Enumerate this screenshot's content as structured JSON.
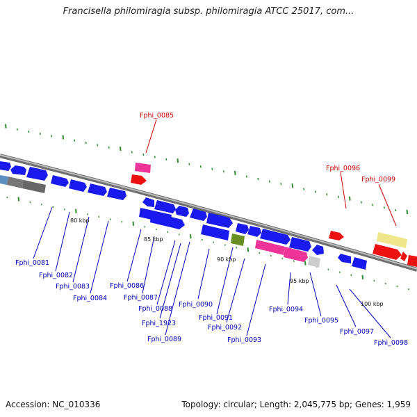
{
  "title": "Francisella philomiragia subsp. philomiragia ATCC 25017, com...",
  "footer": {
    "accession": "Accession: NC_010336",
    "summary": "Topology: circular; Length: 2,045,775 bp; Genes: 1,959"
  },
  "colors": {
    "backbone": "#8a8a8a",
    "tick": "#2e8b2e",
    "label_blue": "#0000bb",
    "label_red": "#cc0000",
    "cds_blue": "#1a1aee",
    "cds_red": "#ee1111",
    "cds_pink": "#ee3399",
    "cds_gray": "#777777",
    "cds_steel": "#5a8fc0",
    "cds_olive": "#6b8e23",
    "cds_cream": "#f0e68c",
    "cds_lightgray": "#cccccc"
  },
  "scale_labels": [
    "80 kbp",
    "85 kbp",
    "90 kbp",
    "95 kbp",
    "100 kbp"
  ],
  "gene_labels": [
    "Fphi_0085",
    "Fphi_0096",
    "Fphi_0099",
    "Fphi_0081",
    "Fphi_0082",
    "Fphi_0083",
    "Fphi_0084",
    "Fphi_0086",
    "Fphi_0087",
    "Fphi_0088",
    "Fphi_1923",
    "Fphi_0089",
    "Fphi_0090",
    "Fphi_0091",
    "Fphi_0092",
    "Fphi_0093",
    "Fphi_0094",
    "Fphi_0095",
    "Fphi_0097",
    "Fphi_0098"
  ]
}
